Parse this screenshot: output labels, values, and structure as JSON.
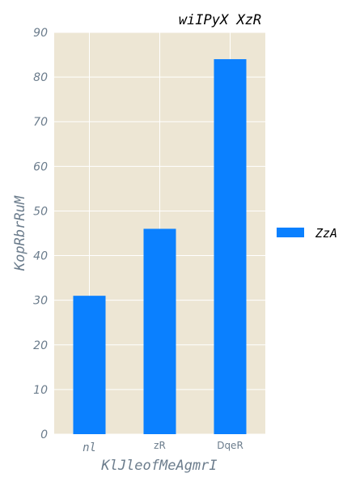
{
  "chart_data": {
    "type": "bar",
    "title": "wiIPyX XzR",
    "xlabel": "KlJleofMeAgmrI",
    "ylabel": "KopRbrRuM",
    "categories": [
      "nl",
      "zR",
      "DqeR"
    ],
    "series": [
      {
        "name": "ZzA",
        "values": [
          31,
          46,
          84
        ]
      }
    ],
    "ylim": [
      0,
      90
    ],
    "yticks": [
      0,
      10,
      20,
      30,
      40,
      50,
      60,
      70,
      80,
      90
    ],
    "grid": true,
    "legend_position": "right",
    "colors": {
      "bar": "#0a80ff",
      "plot_background": "#ede6d4",
      "grid": "#ffffff",
      "tick_text": "#6b7c8c"
    }
  }
}
